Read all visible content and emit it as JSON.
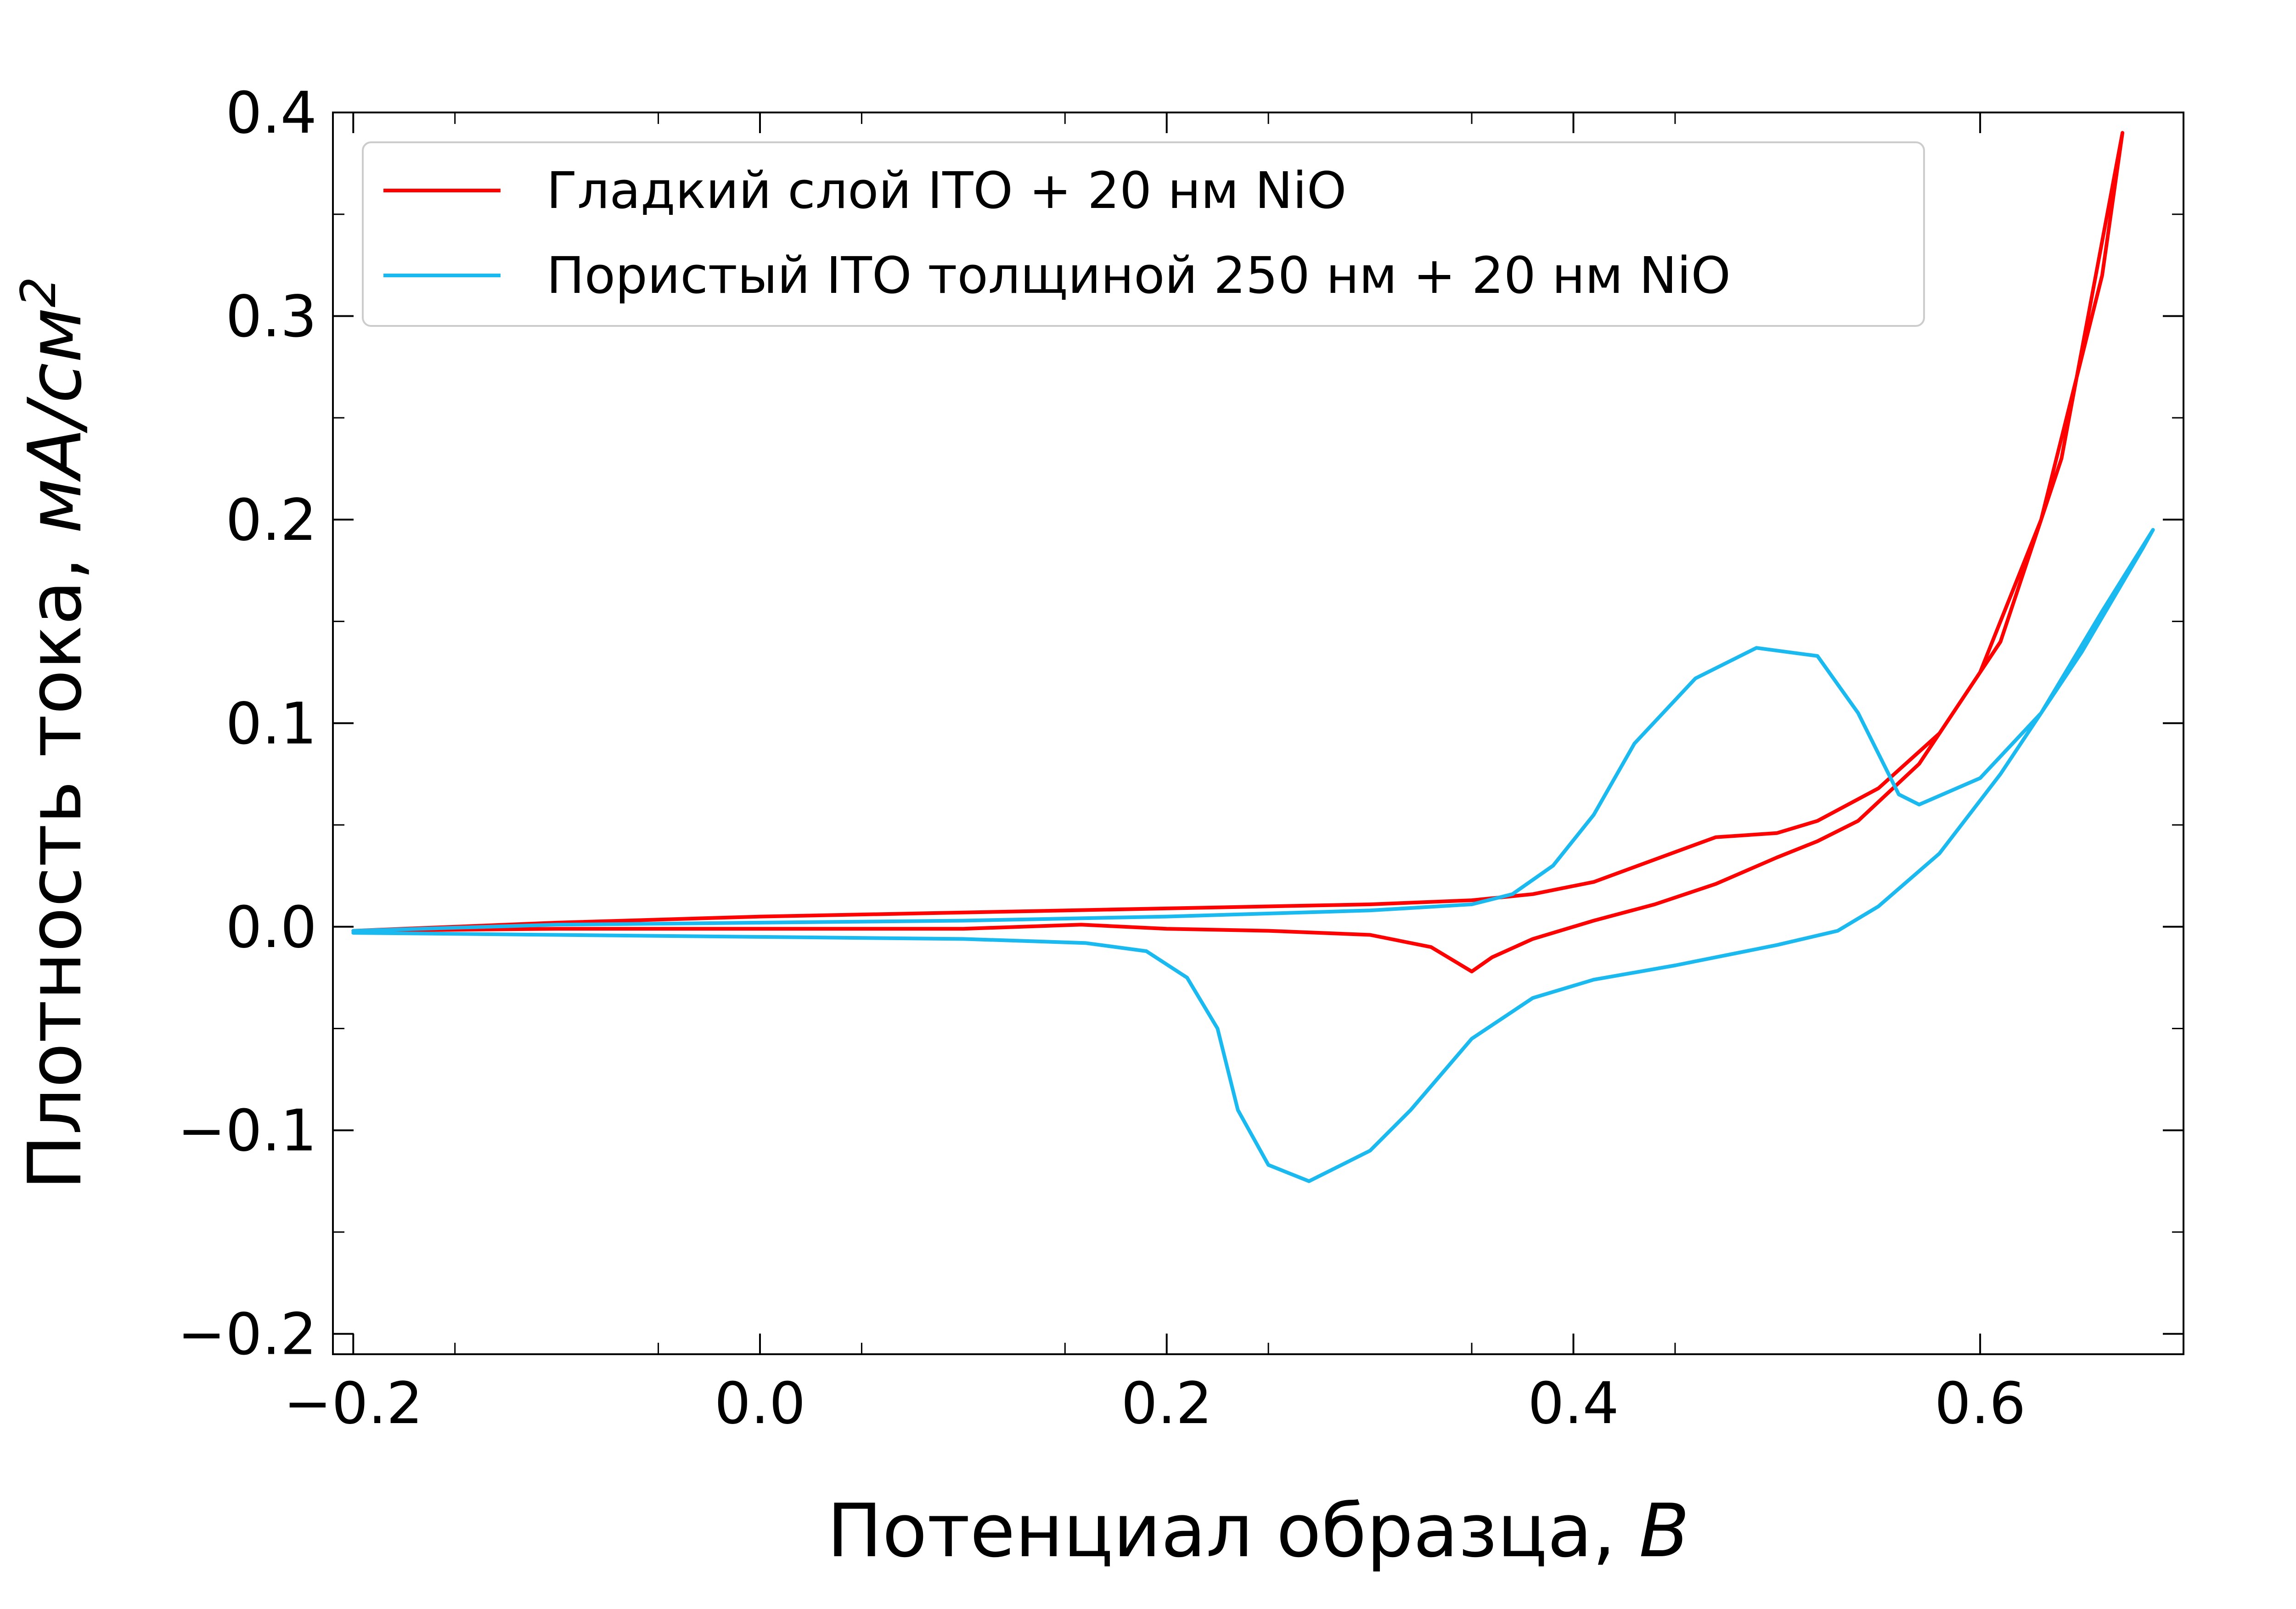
{
  "chart_data": {
    "type": "line",
    "xlabel": "Потенциал образца, ",
    "xlabel_unit": "В",
    "ylabel": "Плотность тока, ",
    "ylabel_unit": "мА/см",
    "ylabel_sup": "2",
    "xlim": [
      -0.21,
      0.7
    ],
    "ylim": [
      -0.21,
      0.4
    ],
    "x_ticks": [
      -0.2,
      0.0,
      0.2,
      0.4,
      0.6
    ],
    "x_tick_labels": [
      "−0.2",
      "0.0",
      "0.2",
      "0.4",
      "0.6"
    ],
    "y_ticks": [
      -0.2,
      -0.1,
      0.0,
      0.1,
      0.2,
      0.3,
      0.4
    ],
    "y_tick_labels": [
      "−0.2",
      "−0.1",
      "0.0",
      "0.1",
      "0.2",
      "0.3",
      "0.4"
    ],
    "grid": false,
    "legend_position": "top-left",
    "series": [
      {
        "name": "Гладкий слой ITO + 20 нм NiO",
        "color": "#ff0000",
        "x": [
          -0.2,
          -0.1,
          0.0,
          0.1,
          0.2,
          0.3,
          0.35,
          0.38,
          0.41,
          0.44,
          0.47,
          0.5,
          0.52,
          0.55,
          0.58,
          0.61,
          0.64,
          0.67,
          0.66,
          0.63,
          0.6,
          0.57,
          0.54,
          0.52,
          0.5,
          0.47,
          0.44,
          0.41,
          0.38,
          0.36,
          0.35,
          0.33,
          0.3,
          0.25,
          0.2,
          0.158,
          0.1,
          0.0,
          -0.1,
          -0.2
        ],
        "y": [
          -0.002,
          0.002,
          0.005,
          0.007,
          0.009,
          0.011,
          0.013,
          0.016,
          0.022,
          0.033,
          0.044,
          0.046,
          0.052,
          0.068,
          0.095,
          0.14,
          0.23,
          0.39,
          0.32,
          0.2,
          0.125,
          0.08,
          0.052,
          0.042,
          0.034,
          0.021,
          0.011,
          0.003,
          -0.006,
          -0.015,
          -0.022,
          -0.01,
          -0.004,
          -0.002,
          -0.001,
          0.001,
          -0.001,
          -0.001,
          -0.001,
          -0.002
        ]
      },
      {
        "name": "Пористый ITO толщиной 250 нм + 20 нм NiO",
        "color": "#1abaf0",
        "x": [
          -0.2,
          -0.1,
          0.0,
          0.1,
          0.2,
          0.3,
          0.35,
          0.37,
          0.39,
          0.41,
          0.43,
          0.46,
          0.49,
          0.52,
          0.54,
          0.56,
          0.57,
          0.6,
          0.63,
          0.66,
          0.685,
          0.68,
          0.65,
          0.61,
          0.58,
          0.55,
          0.53,
          0.5,
          0.45,
          0.41,
          0.38,
          0.35,
          0.32,
          0.3,
          0.27,
          0.25,
          0.235,
          0.225,
          0.21,
          0.19,
          0.16,
          0.1,
          0.0,
          -0.1,
          -0.2
        ],
        "y": [
          -0.002,
          0.001,
          0.002,
          0.003,
          0.005,
          0.008,
          0.011,
          0.016,
          0.03,
          0.055,
          0.09,
          0.122,
          0.137,
          0.133,
          0.105,
          0.065,
          0.06,
          0.073,
          0.105,
          0.155,
          0.195,
          0.186,
          0.135,
          0.075,
          0.036,
          0.01,
          -0.002,
          -0.009,
          -0.019,
          -0.026,
          -0.035,
          -0.055,
          -0.09,
          -0.11,
          -0.125,
          -0.117,
          -0.09,
          -0.05,
          -0.025,
          -0.012,
          -0.008,
          -0.006,
          -0.005,
          -0.004,
          -0.003
        ]
      }
    ]
  }
}
